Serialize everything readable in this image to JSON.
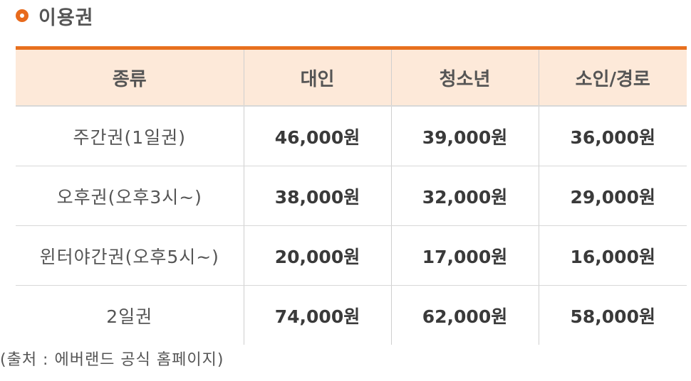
{
  "section": {
    "title": "이용권"
  },
  "table": {
    "headers": [
      "종류",
      "대인",
      "청소년",
      "소인/경로"
    ],
    "rows": [
      {
        "kind": "주간권(1일권)",
        "adult": "46,000원",
        "youth": "39,000원",
        "child_senior": "36,000원"
      },
      {
        "kind": "오후권(오후3시~)",
        "adult": "38,000원",
        "youth": "32,000원",
        "child_senior": "29,000원"
      },
      {
        "kind": "윈터야간권(오후5시~)",
        "adult": "20,000원",
        "youth": "17,000원",
        "child_senior": "16,000원"
      },
      {
        "kind": "2일권",
        "adult": "74,000원",
        "youth": "62,000원",
        "child_senior": "58,000원"
      }
    ]
  },
  "source": "(출처 : 에버랜드 공식 홈페이지)",
  "colors": {
    "accent": "#e8701e",
    "header_bg": "#fde9d9"
  }
}
